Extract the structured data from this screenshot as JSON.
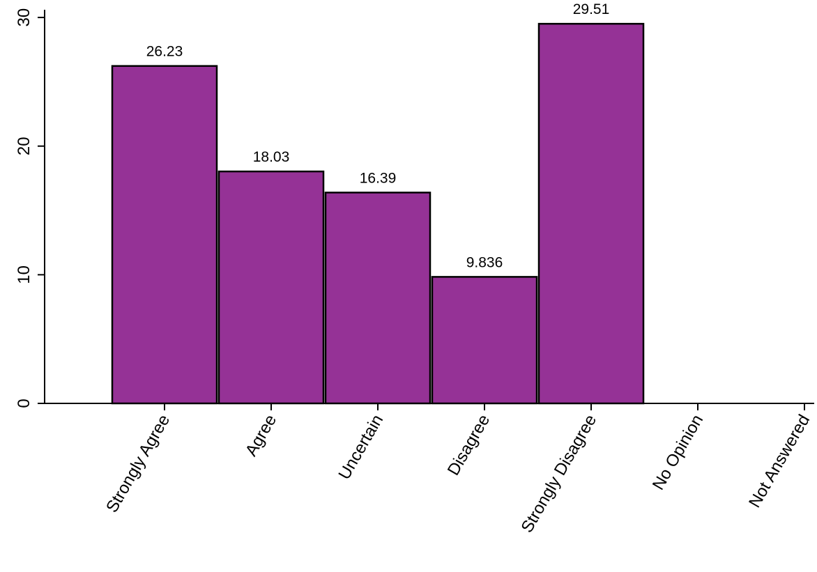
{
  "chart_data": {
    "type": "bar",
    "title": "",
    "xlabel": "",
    "ylabel": "",
    "categories": [
      "Strongly Agree",
      "Agree",
      "Uncertain",
      "Disagree",
      "Strongly Disagree",
      "No Opinion",
      "Not Answered"
    ],
    "values": [
      26.23,
      18.03,
      16.39,
      9.836,
      29.51,
      0,
      0
    ],
    "data_labels": [
      "26.23",
      "18.03",
      "16.39",
      "9.836",
      "29.51",
      "",
      ""
    ],
    "yticks": [
      0,
      10,
      20,
      30
    ],
    "ylim": [
      0,
      30.6
    ],
    "grid": false,
    "legend": "none",
    "bar_color": "#953296",
    "edge_color": "#000000"
  }
}
